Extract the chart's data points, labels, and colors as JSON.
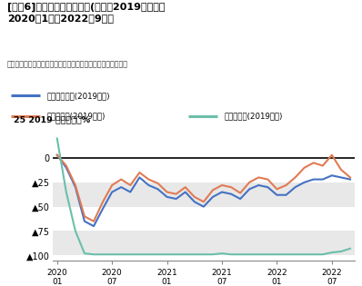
{
  "title_line1": "[図表6]延べ宿泊者数の推移(月次、2019年対比、",
  "title_line2": "2020年1月〜2022年9月）",
  "source": "出所：「宿泊旅行統計調査」を基にニッセイ基礎研究所が作成",
  "ylabel": "25 2019 年同月比、%",
  "legend": [
    "延べ宿泊者数(2019年比)",
    "うち日本人(2019年比)",
    "うち外国人(2019年比)"
  ],
  "colors": {
    "total": "#4472C4",
    "japanese": "#E07B54",
    "foreign": "#6BBFAA"
  },
  "ylim": [
    -105,
    30
  ],
  "yticks": [
    0,
    -25,
    -50,
    -75,
    -100
  ],
  "ytick_labels": [
    "0",
    "┥25",
    "┥50",
    "┥75",
    "┥100"
  ],
  "band_ranges": [
    [
      -25,
      -50
    ],
    [
      -75,
      -100
    ]
  ],
  "band_color": "#E8E8E8",
  "months_n": 33,
  "total": [
    3,
    -10,
    -30,
    -65,
    -70,
    -52,
    -35,
    -30,
    -35,
    -20,
    -28,
    -32,
    -40,
    -42,
    -35,
    -45,
    -50,
    -40,
    -35,
    -37,
    -42,
    -32,
    -28,
    -30,
    -38,
    -38,
    -30,
    -25,
    -22,
    -22,
    -18,
    -20,
    -22
  ],
  "japanese": [
    3,
    -8,
    -28,
    -60,
    -65,
    -45,
    -28,
    -22,
    -28,
    -15,
    -22,
    -26,
    -35,
    -37,
    -30,
    -40,
    -45,
    -33,
    -28,
    -30,
    -36,
    -25,
    -20,
    -22,
    -32,
    -28,
    -20,
    -10,
    -5,
    -8,
    3,
    -12,
    -20
  ],
  "foreign": [
    20,
    -35,
    -75,
    -98,
    -99,
    -99,
    -99,
    -99,
    -99,
    -99,
    -99,
    -99,
    -99,
    -99,
    -99,
    -99,
    -99,
    -99,
    -98,
    -99,
    -99,
    -99,
    -99,
    -99,
    -99,
    -99,
    -99,
    -99,
    -99,
    -99,
    -97,
    -96,
    -93
  ],
  "xtick_positions": [
    0,
    6,
    12,
    18,
    24,
    30
  ],
  "xtick_labels": [
    "2020\n01",
    "2020\n07",
    "2021\n01",
    "2021\n07",
    "2022\n01",
    "2022\n07"
  ]
}
